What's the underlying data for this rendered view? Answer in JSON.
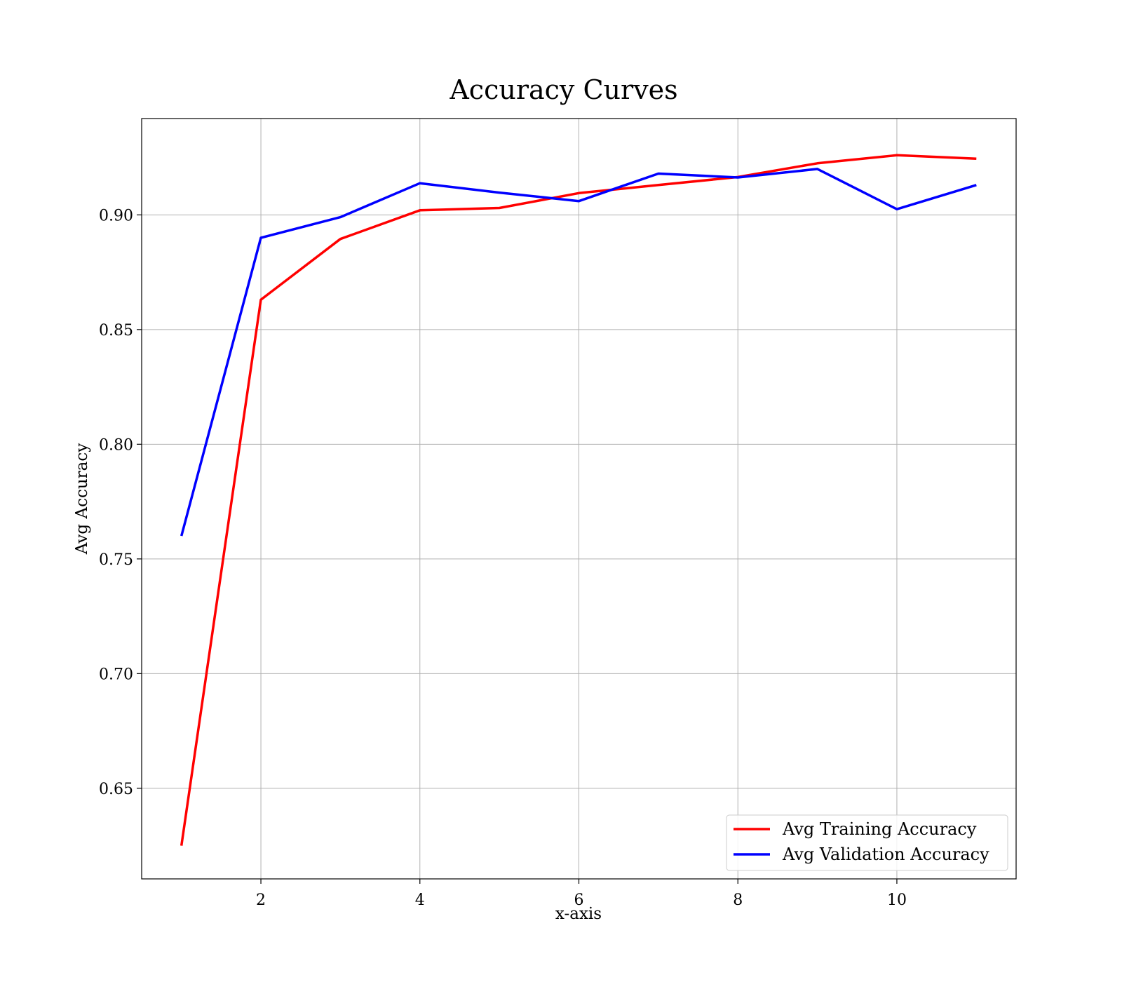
{
  "chart_data": {
    "type": "line",
    "title": "Accuracy Curves",
    "xlabel": "x-axis",
    "ylabel": "Avg Accuracy",
    "x": [
      1,
      2,
      3,
      4,
      5,
      6,
      7,
      8,
      9,
      10,
      11
    ],
    "xlim": [
      0.5,
      11.5
    ],
    "ylim": [
      0.6105,
      0.942
    ],
    "xticks": [
      2,
      4,
      6,
      8,
      10
    ],
    "yticks": [
      0.65,
      0.7,
      0.75,
      0.8,
      0.85,
      0.9
    ],
    "ytick_labels": [
      "0.65",
      "0.70",
      "0.75",
      "0.80",
      "0.85",
      "0.90"
    ],
    "grid": true,
    "legend_position": "lower-right",
    "series": [
      {
        "name": "Avg Training Accuracy",
        "color": "#ff0000",
        "values": [
          0.625,
          0.863,
          0.8895,
          0.902,
          0.903,
          0.9095,
          0.913,
          0.9165,
          0.9225,
          0.926,
          0.9245
        ]
      },
      {
        "name": "Avg Validation Accuracy",
        "color": "#0000ff",
        "values": [
          0.76,
          0.89,
          0.899,
          0.9138,
          0.9097,
          0.906,
          0.918,
          0.9163,
          0.92,
          0.9025,
          0.913
        ]
      }
    ]
  }
}
